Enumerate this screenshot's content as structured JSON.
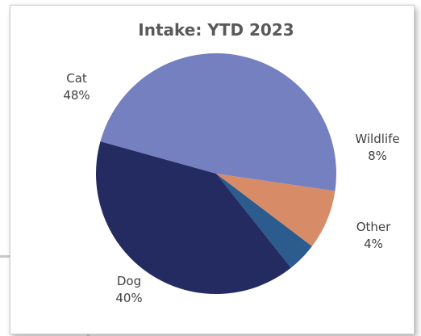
{
  "chart_data": {
    "type": "pie",
    "title": "Intake: YTD 2023",
    "slices": [
      {
        "label": "Cat",
        "value": 48,
        "value_label": "48%",
        "color": "#7480bf"
      },
      {
        "label": "Wildlife",
        "value": 8,
        "value_label": "8%",
        "color": "#d78c67"
      },
      {
        "label": "Other",
        "value": 4,
        "value_label": "4%",
        "color": "#2c5b8e"
      },
      {
        "label": "Dog",
        "value": 40,
        "value_label": "40%",
        "color": "#232b61"
      }
    ],
    "legend": "none",
    "label_position": "outside"
  }
}
